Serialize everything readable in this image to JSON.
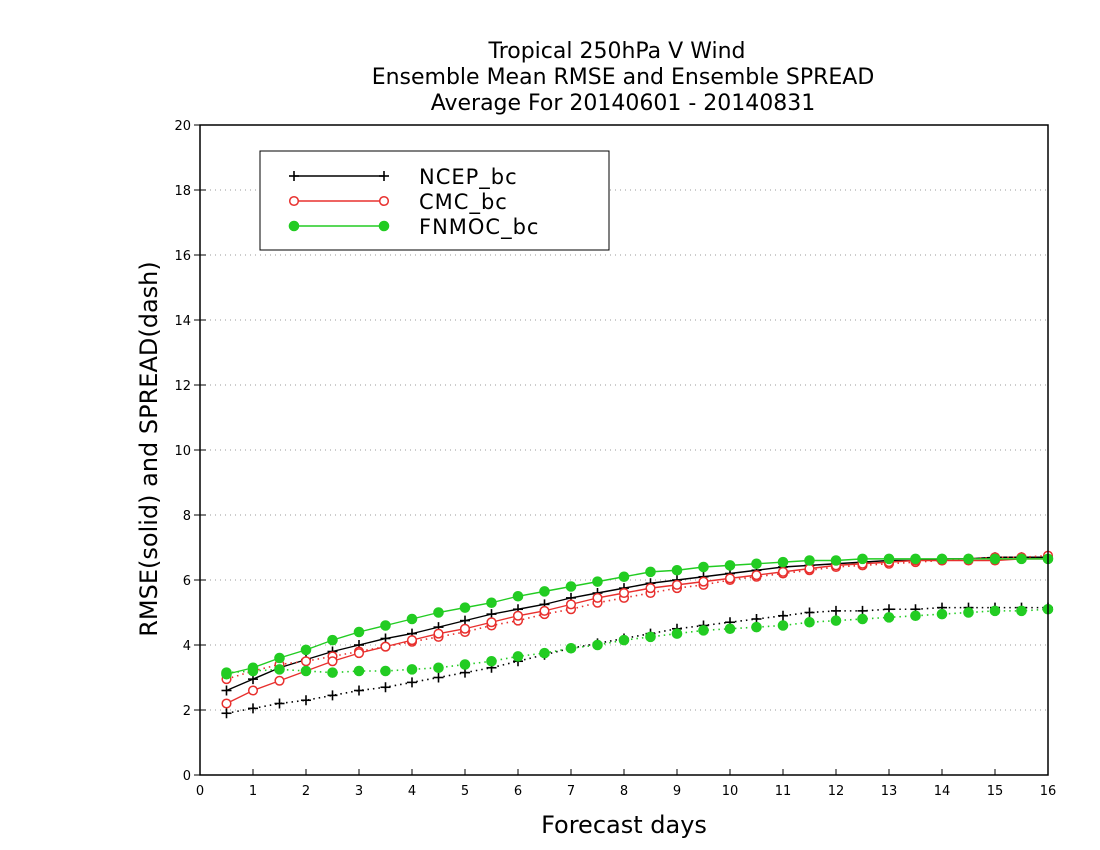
{
  "chart_data": {
    "type": "line",
    "title_lines": [
      "Tropical 250hPa V Wind",
      "Ensemble Mean RMSE and Ensemble SPREAD",
      "Average For 20140601 - 20140831"
    ],
    "xlabel": "Forecast days",
    "ylabel": "RMSE(solid) and SPREAD(dash)",
    "xlim": [
      0,
      16
    ],
    "ylim": [
      0,
      20
    ],
    "xticks": [
      "0",
      "1",
      "2",
      "3",
      "4",
      "5",
      "6",
      "7",
      "8",
      "9",
      "10",
      "11",
      "12",
      "13",
      "14",
      "15",
      "16"
    ],
    "yticks": [
      "0",
      "2",
      "4",
      "6",
      "8",
      "10",
      "12",
      "14",
      "16",
      "18",
      "20"
    ],
    "grid": "horizontal dotted",
    "legend_position": "top-left",
    "x": [
      0.5,
      1,
      1.5,
      2,
      2.5,
      3,
      3.5,
      4,
      4.5,
      5,
      5.5,
      6,
      6.5,
      7,
      7.5,
      8,
      8.5,
      9,
      9.5,
      10,
      10.5,
      11,
      11.5,
      12,
      12.5,
      13,
      13.5,
      14,
      14.5,
      15,
      15.5,
      16
    ],
    "series": [
      {
        "name": "NCEP_bc",
        "color": "#000000",
        "marker": "plus",
        "rmse": [
          2.6,
          2.95,
          3.3,
          3.55,
          3.8,
          4.0,
          4.2,
          4.35,
          4.55,
          4.75,
          4.95,
          5.1,
          5.25,
          5.45,
          5.6,
          5.75,
          5.9,
          6.0,
          6.1,
          6.2,
          6.3,
          6.4,
          6.45,
          6.5,
          6.55,
          6.6,
          6.6,
          6.65,
          6.65,
          6.7,
          6.7,
          6.7
        ],
        "spread": [
          1.9,
          2.05,
          2.2,
          2.3,
          2.45,
          2.6,
          2.7,
          2.85,
          3.0,
          3.15,
          3.3,
          3.5,
          3.7,
          3.9,
          4.05,
          4.2,
          4.35,
          4.5,
          4.6,
          4.7,
          4.8,
          4.9,
          5.0,
          5.05,
          5.05,
          5.1,
          5.1,
          5.15,
          5.15,
          5.15,
          5.15,
          5.15
        ]
      },
      {
        "name": "CMC_bc",
        "color": "#e8302e",
        "marker": "open-circle",
        "rmse": [
          2.2,
          2.6,
          2.9,
          3.2,
          3.5,
          3.75,
          3.95,
          4.15,
          4.35,
          4.5,
          4.7,
          4.9,
          5.05,
          5.25,
          5.45,
          5.6,
          5.75,
          5.85,
          5.95,
          6.05,
          6.15,
          6.25,
          6.35,
          6.45,
          6.5,
          6.55,
          6.6,
          6.6,
          6.6,
          6.6,
          6.65,
          6.65
        ],
        "spread": [
          2.95,
          3.2,
          3.4,
          3.5,
          3.65,
          3.8,
          3.95,
          4.1,
          4.25,
          4.4,
          4.6,
          4.75,
          4.95,
          5.1,
          5.3,
          5.45,
          5.6,
          5.75,
          5.85,
          6.0,
          6.1,
          6.2,
          6.3,
          6.4,
          6.45,
          6.5,
          6.55,
          6.6,
          6.65,
          6.7,
          6.7,
          6.75
        ]
      },
      {
        "name": "FNMOC_bc",
        "color": "#22cc22",
        "marker": "filled-circle",
        "rmse": [
          3.1,
          3.3,
          3.6,
          3.85,
          4.15,
          4.4,
          4.6,
          4.8,
          5.0,
          5.15,
          5.3,
          5.5,
          5.65,
          5.8,
          5.95,
          6.1,
          6.25,
          6.3,
          6.4,
          6.45,
          6.5,
          6.55,
          6.6,
          6.6,
          6.65,
          6.65,
          6.65,
          6.65,
          6.65,
          6.65,
          6.65,
          6.65
        ],
        "spread": [
          3.15,
          3.2,
          3.25,
          3.2,
          3.15,
          3.2,
          3.2,
          3.25,
          3.3,
          3.4,
          3.5,
          3.65,
          3.75,
          3.9,
          4.0,
          4.15,
          4.25,
          4.35,
          4.45,
          4.5,
          4.55,
          4.6,
          4.7,
          4.75,
          4.8,
          4.85,
          4.9,
          4.95,
          5.0,
          5.05,
          5.05,
          5.1
        ]
      }
    ]
  }
}
